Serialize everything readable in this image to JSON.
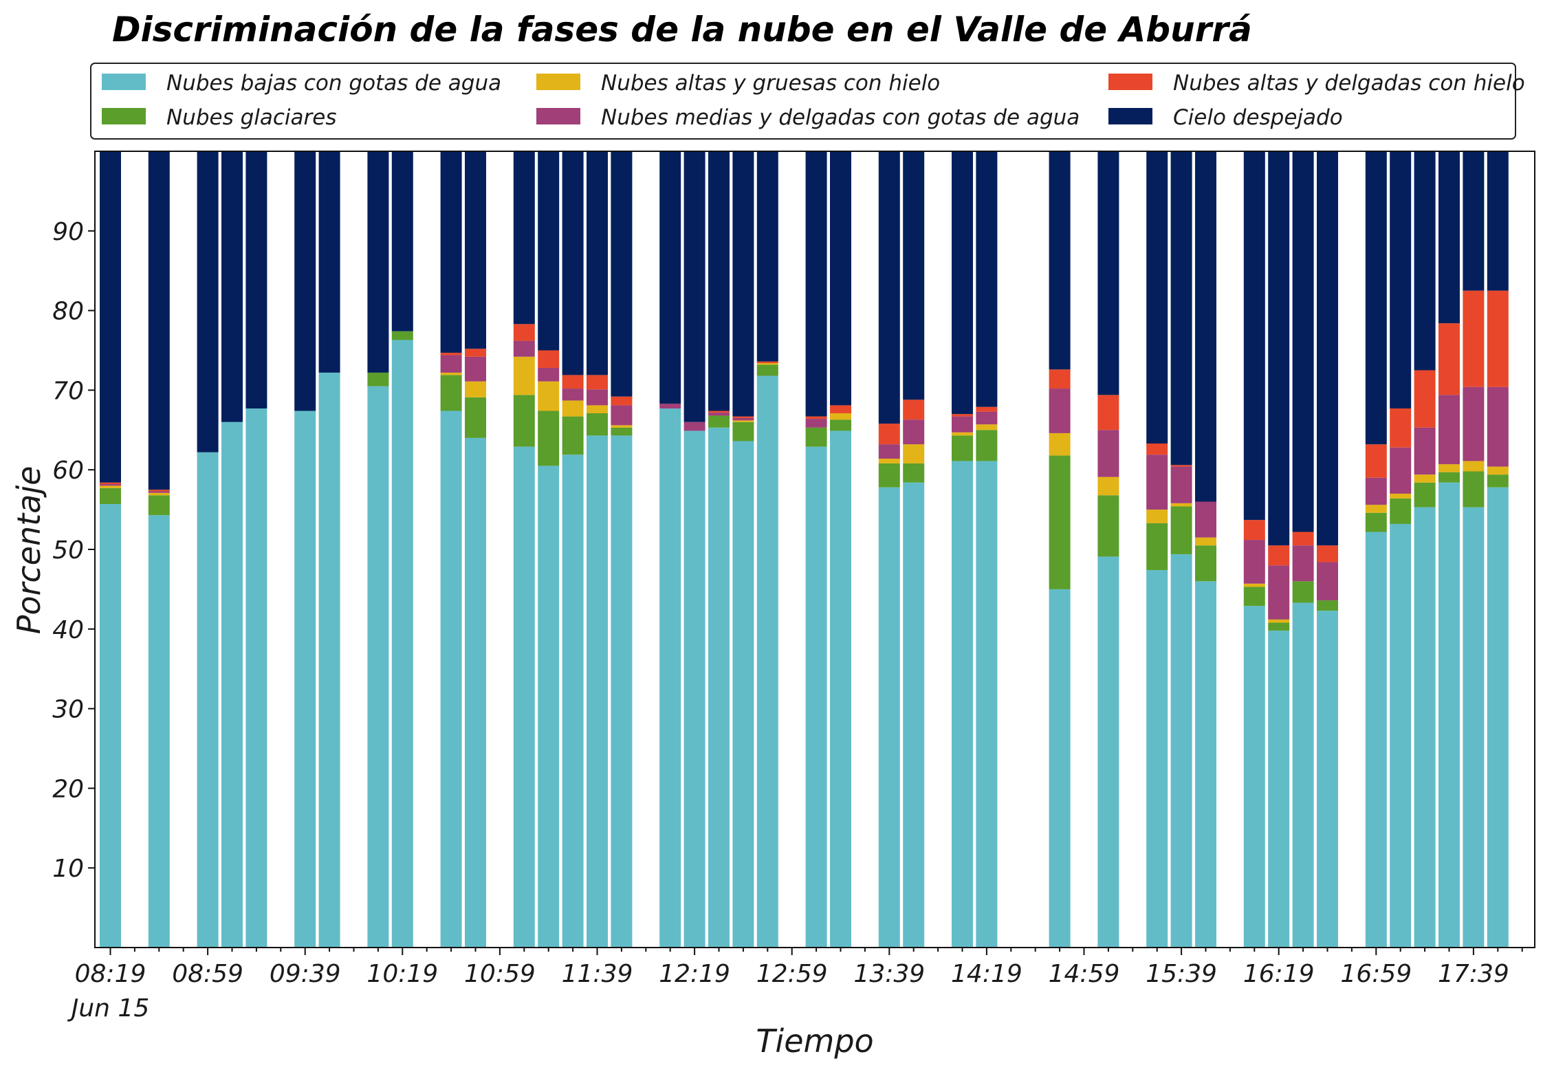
{
  "chart_data": {
    "type": "bar",
    "stacked": true,
    "title": "Discriminación de la fases de la nube en el Valle de Aburrá",
    "xlabel": "Tiempo",
    "ylabel": "Porcentaje",
    "ylim": [
      0,
      100
    ],
    "yticks": [
      10,
      20,
      30,
      40,
      50,
      60,
      70,
      80,
      90
    ],
    "grid": false,
    "legend_placement": "top",
    "x_start": "08:19",
    "x_step_minutes": 10,
    "x_slots": 60,
    "xticks": [
      {
        "slot": 0,
        "label": "08:19",
        "sublabel": "Jun 15"
      },
      {
        "slot": 4,
        "label": "08:59"
      },
      {
        "slot": 8,
        "label": "09:39"
      },
      {
        "slot": 12,
        "label": "10:19"
      },
      {
        "slot": 16,
        "label": "10:59"
      },
      {
        "slot": 20,
        "label": "11:39"
      },
      {
        "slot": 24,
        "label": "12:19"
      },
      {
        "slot": 28,
        "label": "12:59"
      },
      {
        "slot": 32,
        "label": "13:39"
      },
      {
        "slot": 36,
        "label": "14:19"
      },
      {
        "slot": 40,
        "label": "14:59"
      },
      {
        "slot": 44,
        "label": "15:39"
      },
      {
        "slot": 48,
        "label": "16:19"
      },
      {
        "slot": 52,
        "label": "16:59"
      },
      {
        "slot": 56,
        "label": "17:39"
      }
    ],
    "series": [
      {
        "name": "Nubes bajas con gotas de agua",
        "color": "#62bcc8"
      },
      {
        "name": "Nubes glaciares",
        "color": "#5b9e2b"
      },
      {
        "name": "Nubes altas y gruesas con hielo",
        "color": "#e3b417"
      },
      {
        "name": "Nubes medias y delgadas con gotas de agua",
        "color": "#a03f78"
      },
      {
        "name": "Nubes altas y delgadas con hielo",
        "color": "#e8472b"
      },
      {
        "name": "Cielo despejado",
        "color": "#041f5c"
      }
    ],
    "bars": [
      {
        "slot": 0,
        "values": [
          55.7,
          2.0,
          0.3,
          0.2,
          0.2,
          41.6
        ]
      },
      {
        "slot": 2,
        "values": [
          54.3,
          2.5,
          0.3,
          0.2,
          0.2,
          42.5
        ]
      },
      {
        "slot": 4,
        "values": [
          62.2,
          0,
          0,
          0,
          0,
          37.8
        ]
      },
      {
        "slot": 5,
        "values": [
          66.0,
          0,
          0,
          0,
          0,
          34.0
        ]
      },
      {
        "slot": 6,
        "values": [
          67.7,
          0,
          0,
          0,
          0,
          32.3
        ]
      },
      {
        "slot": 8,
        "values": [
          67.4,
          0,
          0,
          0,
          0,
          32.6
        ]
      },
      {
        "slot": 9,
        "values": [
          72.2,
          0,
          0,
          0,
          0,
          27.8
        ]
      },
      {
        "slot": 11,
        "values": [
          70.5,
          1.7,
          0,
          0,
          0,
          27.8
        ]
      },
      {
        "slot": 12,
        "values": [
          76.3,
          1.1,
          0,
          0,
          0,
          22.6
        ]
      },
      {
        "slot": 14,
        "values": [
          67.4,
          4.5,
          0.3,
          2.2,
          0.3,
          25.3
        ]
      },
      {
        "slot": 15,
        "values": [
          64.0,
          5.1,
          2.0,
          3.1,
          1.0,
          24.8
        ]
      },
      {
        "slot": 17,
        "values": [
          62.9,
          6.5,
          4.8,
          2.0,
          2.1,
          21.7
        ]
      },
      {
        "slot": 18,
        "values": [
          60.5,
          6.9,
          3.7,
          1.7,
          2.2,
          25.0
        ]
      },
      {
        "slot": 19,
        "values": [
          61.9,
          4.8,
          2.0,
          1.5,
          1.7,
          28.1
        ]
      },
      {
        "slot": 20,
        "values": [
          64.3,
          2.8,
          1.0,
          2.0,
          1.8,
          28.1
        ]
      },
      {
        "slot": 21,
        "values": [
          64.3,
          1.0,
          0.3,
          2.5,
          1.1,
          30.8
        ]
      },
      {
        "slot": 23,
        "values": [
          67.7,
          0,
          0,
          0.6,
          0,
          31.7
        ]
      },
      {
        "slot": 24,
        "values": [
          64.9,
          0,
          0,
          1.1,
          0,
          34.0
        ]
      },
      {
        "slot": 25,
        "values": [
          65.3,
          1.5,
          0,
          0.4,
          0.2,
          32.6
        ]
      },
      {
        "slot": 26,
        "values": [
          63.6,
          2.4,
          0.2,
          0.3,
          0.2,
          33.3
        ]
      },
      {
        "slot": 27,
        "values": [
          71.8,
          1.4,
          0.2,
          0,
          0.2,
          26.4
        ]
      },
      {
        "slot": 29,
        "values": [
          62.9,
          2.4,
          0,
          1.1,
          0.3,
          33.3
        ]
      },
      {
        "slot": 30,
        "values": [
          64.9,
          1.4,
          0.8,
          0,
          1.0,
          31.9
        ]
      },
      {
        "slot": 32,
        "values": [
          57.8,
          3.0,
          0.6,
          1.8,
          2.6,
          34.2
        ]
      },
      {
        "slot": 33,
        "values": [
          58.4,
          2.4,
          2.4,
          3.1,
          2.5,
          31.2
        ]
      },
      {
        "slot": 35,
        "values": [
          61.1,
          3.2,
          0.4,
          2.0,
          0.3,
          33.0
        ]
      },
      {
        "slot": 36,
        "values": [
          61.1,
          3.9,
          0.7,
          1.6,
          0.6,
          32.1
        ]
      },
      {
        "slot": 39,
        "values": [
          45.0,
          16.8,
          2.8,
          5.6,
          2.4,
          27.4
        ]
      },
      {
        "slot": 41,
        "values": [
          49.1,
          7.7,
          2.3,
          5.9,
          4.4,
          30.6
        ]
      },
      {
        "slot": 43,
        "values": [
          47.4,
          5.9,
          1.7,
          6.9,
          1.4,
          36.7
        ]
      },
      {
        "slot": 44,
        "values": [
          49.4,
          6.0,
          0.4,
          4.6,
          0.2,
          39.4
        ]
      },
      {
        "slot": 45,
        "values": [
          46.0,
          4.5,
          1.0,
          4.5,
          0,
          44.0
        ]
      },
      {
        "slot": 47,
        "values": [
          42.9,
          2.4,
          0.4,
          5.5,
          2.5,
          46.3
        ]
      },
      {
        "slot": 48,
        "values": [
          39.8,
          1.0,
          0.4,
          6.8,
          2.5,
          49.5
        ]
      },
      {
        "slot": 49,
        "values": [
          43.3,
          2.7,
          0,
          4.5,
          1.7,
          47.8
        ]
      },
      {
        "slot": 50,
        "values": [
          42.3,
          1.3,
          0,
          4.8,
          2.1,
          49.5
        ]
      },
      {
        "slot": 52,
        "values": [
          52.2,
          2.4,
          1.0,
          3.4,
          4.2,
          36.8
        ]
      },
      {
        "slot": 53,
        "values": [
          53.2,
          3.2,
          0.6,
          5.8,
          4.9,
          32.3
        ]
      },
      {
        "slot": 54,
        "values": [
          55.3,
          3.1,
          1.0,
          5.9,
          7.2,
          27.5
        ]
      },
      {
        "slot": 55,
        "values": [
          58.4,
          1.3,
          1.0,
          8.7,
          9.0,
          21.6
        ]
      },
      {
        "slot": 56,
        "values": [
          55.3,
          4.5,
          1.3,
          9.3,
          12.1,
          17.5
        ]
      },
      {
        "slot": 57,
        "values": [
          57.8,
          1.6,
          1.0,
          10.0,
          12.1,
          17.5
        ]
      }
    ]
  }
}
